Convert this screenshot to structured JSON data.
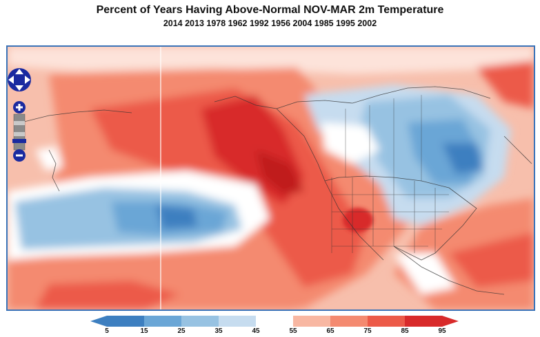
{
  "title": "Percent of Years Having Above-Normal NOV-MAR 2m Temperature",
  "subtitle": "2014 2013 1978 1962 1992 1956 2004 1985 1995 2002",
  "map": {
    "controls": {
      "pan_icon": "pan-arrows-icon",
      "zoom_in_label": "+",
      "zoom_out_label": "−"
    }
  },
  "colorbar": {
    "labels": [
      "5",
      "15",
      "25",
      "35",
      "45",
      "55",
      "65",
      "75",
      "85",
      "95"
    ],
    "colors": [
      "#3d7fc0",
      "#6aa6d6",
      "#97c2e2",
      "#c6dcef",
      "#ffffff",
      "#f8b7a2",
      "#f48a70",
      "#ec5a48",
      "#d82a2a"
    ]
  }
}
